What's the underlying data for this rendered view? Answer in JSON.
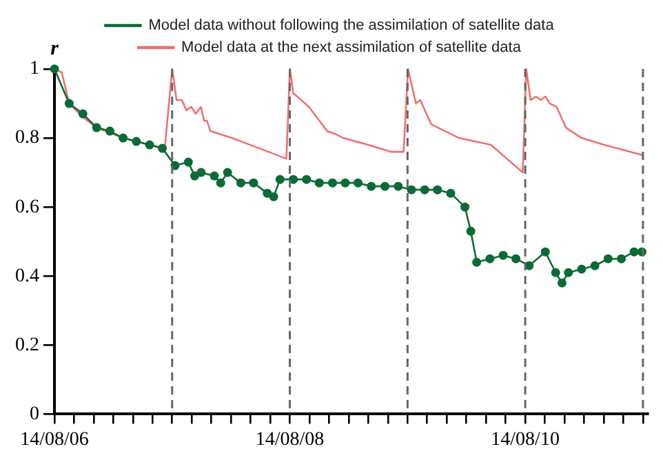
{
  "chart_data": {
    "type": "line",
    "ylabel": "r",
    "xlim": [
      "--08-06T00:00",
      "--08-11T01:00"
    ],
    "ylim": [
      0,
      1
    ],
    "yticks": [
      0,
      0.2,
      0.4,
      0.6,
      0.8,
      1
    ],
    "xticks": [
      {
        "value": "--08-06T00:00",
        "label": "14/08/06"
      },
      {
        "value": "--08-06T04:00",
        "label": null
      },
      {
        "value": "--08-06T08:00",
        "label": null
      },
      {
        "value": "--08-06T12:00",
        "label": null
      },
      {
        "value": "--08-06T16:00",
        "label": null
      },
      {
        "value": "--08-06T20:00",
        "label": null
      },
      {
        "value": "--08-07T00:00",
        "label": null
      },
      {
        "value": "--08-07T04:00",
        "label": null
      },
      {
        "value": "--08-07T08:00",
        "label": null
      },
      {
        "value": "--08-07T12:00",
        "label": null
      },
      {
        "value": "--08-07T16:00",
        "label": null
      },
      {
        "value": "--08-07T20:00",
        "label": null
      },
      {
        "value": "--08-08T00:00",
        "label": "14/08/08"
      },
      {
        "value": "--08-08T04:00",
        "label": null
      },
      {
        "value": "--08-08T08:00",
        "label": null
      },
      {
        "value": "--08-08T12:00",
        "label": null
      },
      {
        "value": "--08-08T16:00",
        "label": null
      },
      {
        "value": "--08-08T20:00",
        "label": null
      },
      {
        "value": "--08-09T00:00",
        "label": null
      },
      {
        "value": "--08-09T04:00",
        "label": null
      },
      {
        "value": "--08-09T08:00",
        "label": null
      },
      {
        "value": "--08-09T12:00",
        "label": null
      },
      {
        "value": "--08-09T16:00",
        "label": null
      },
      {
        "value": "--08-09T20:00",
        "label": null
      },
      {
        "value": "--08-10T00:00",
        "label": "14/08/10"
      },
      {
        "value": "--08-10T04:00",
        "label": null
      },
      {
        "value": "--08-10T08:00",
        "label": null
      },
      {
        "value": "--08-10T12:00",
        "label": null
      },
      {
        "value": "--08-10T16:00",
        "label": null
      },
      {
        "value": "--08-10T20:00",
        "label": null
      },
      {
        "value": "--08-11T00:00",
        "label": null
      }
    ],
    "grid": false,
    "legend": "top",
    "ref_lines": [
      {
        "axis": "x",
        "value": "--08-07T00:00",
        "color": "#666666",
        "line_style": "dashed"
      },
      {
        "axis": "x",
        "value": "--08-08T00:00",
        "color": "#666666",
        "line_style": "dashed"
      },
      {
        "axis": "x",
        "value": "--08-09T00:00",
        "color": "#666666",
        "line_style": "dashed"
      },
      {
        "axis": "x",
        "value": "--08-10T00:00",
        "color": "#666666",
        "line_style": "dashed"
      },
      {
        "axis": "x",
        "value": "--08-11T00:00",
        "color": "#666666",
        "line_style": "dashed"
      }
    ],
    "series": [
      {
        "name": "Model data without following the assimilation of satellite data",
        "color": "#0b6b35",
        "marker": "circle",
        "line_style": "solid",
        "x": [
          "--08-06T00:00",
          "--08-06T03:00",
          "--08-06T05:48",
          "--08-06T08:36",
          "--08-06T11:18",
          "--08-06T14:00",
          "--08-06T16:42",
          "--08-06T19:24",
          "--08-06T22:00",
          "--08-07T00:36",
          "--08-07T03:18",
          "--08-07T04:36",
          "--08-07T05:54",
          "--08-07T08:36",
          "--08-07T09:54",
          "--08-07T11:18",
          "--08-07T14:00",
          "--08-07T16:36",
          "--08-07T19:24",
          "--08-07T20:42",
          "--08-07T22:00",
          "--08-08T00:42",
          "--08-08T03:24",
          "--08-08T06:00",
          "--08-08T08:42",
          "--08-08T11:18",
          "--08-08T13:54",
          "--08-08T16:36",
          "--08-08T19:24",
          "--08-08T22:06",
          "--08-09T00:48",
          "--08-09T03:30",
          "--08-09T06:06",
          "--08-09T08:48",
          "--08-09T11:42",
          "--08-09T12:54",
          "--08-09T14:06",
          "--08-09T16:48",
          "--08-09T19:30",
          "--08-09T22:06",
          "--08-10T00:48",
          "--08-10T04:06",
          "--08-10T06:12",
          "--08-10T07:30",
          "--08-10T08:48",
          "--08-10T11:30",
          "--08-10T14:12",
          "--08-10T16:54",
          "--08-10T19:36",
          "--08-10T22:12",
          "--08-10T23:48"
        ],
        "values": [
          1.0,
          0.9,
          0.87,
          0.83,
          0.82,
          0.8,
          0.79,
          0.78,
          0.77,
          0.72,
          0.73,
          0.69,
          0.7,
          0.69,
          0.67,
          0.7,
          0.67,
          0.67,
          0.64,
          0.63,
          0.68,
          0.68,
          0.68,
          0.67,
          0.67,
          0.67,
          0.67,
          0.66,
          0.66,
          0.66,
          0.65,
          0.65,
          0.65,
          0.64,
          0.6,
          0.53,
          0.44,
          0.45,
          0.46,
          0.45,
          0.43,
          0.47,
          0.41,
          0.38,
          0.41,
          0.42,
          0.43,
          0.45,
          0.45,
          0.47,
          0.47
        ]
      },
      {
        "name": "Model data at the next assimilation of satellite data",
        "color": "#f07070",
        "marker": "none",
        "line_style": "solid",
        "x": [
          "--08-06T00:00",
          "--08-06T01:30",
          "--08-06T03:00",
          "--08-06T05:48",
          "--08-06T08:36",
          "--08-06T14:00",
          "--08-06T19:24",
          "--08-06T22:30",
          "--08-07T00:00",
          "--08-07T00:54",
          "--08-07T02:00",
          "--08-07T02:54",
          "--08-07T03:54",
          "--08-07T04:48",
          "--08-07T05:54",
          "--08-07T06:30",
          "--08-07T07:06",
          "--08-07T07:48",
          "--08-07T12:12",
          "--08-07T17:48",
          "--08-07T23:18",
          "--08-08T00:00",
          "--08-08T00:42",
          "--08-08T03:54",
          "--08-08T07:36",
          "--08-08T09:30",
          "--08-08T10:54",
          "--08-08T16:00",
          "--08-08T20:36",
          "--08-08T23:12",
          "--08-09T00:06",
          "--08-09T01:42",
          "--08-09T02:36",
          "--08-09T04:48",
          "--08-09T10:30",
          "--08-09T17:00",
          "--08-09T23:30",
          "--08-10T00:12",
          "--08-10T01:06",
          "--08-10T02:12",
          "--08-10T03:12",
          "--08-10T04:06",
          "--08-10T05:00",
          "--08-10T06:24",
          "--08-10T08:18",
          "--08-10T11:30",
          "--08-10T16:06",
          "--08-11T00:00"
        ],
        "values": [
          1.0,
          0.99,
          0.9,
          0.86,
          0.83,
          0.8,
          0.78,
          0.77,
          1.0,
          0.91,
          0.91,
          0.88,
          0.89,
          0.87,
          0.89,
          0.85,
          0.85,
          0.82,
          0.8,
          0.77,
          0.74,
          1.0,
          0.93,
          0.89,
          0.82,
          0.81,
          0.8,
          0.78,
          0.76,
          0.76,
          1.0,
          0.9,
          0.91,
          0.84,
          0.8,
          0.78,
          0.7,
          1.0,
          0.91,
          0.92,
          0.91,
          0.92,
          0.9,
          0.89,
          0.83,
          0.8,
          0.78,
          0.75
        ]
      }
    ]
  }
}
